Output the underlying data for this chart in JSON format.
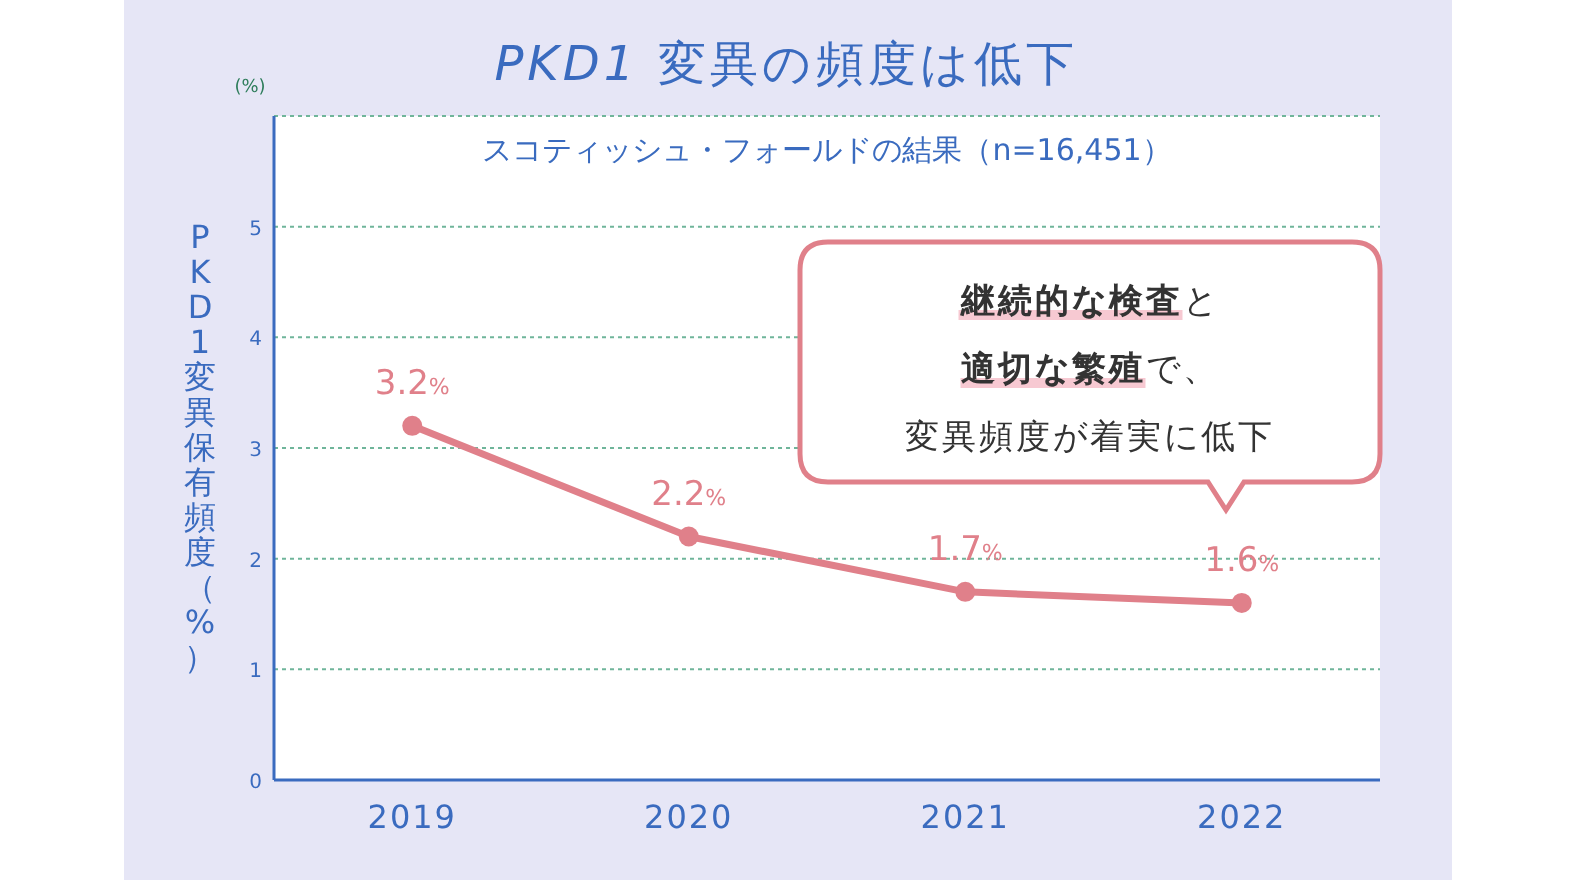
{
  "chart_data": {
    "type": "line",
    "title": "*PKD1* 変異の頻度は低下",
    "subtitle": "スコティッシュ・フォールドの結果（n=16,451）",
    "ylabel": "PKD1変異保有頻度（%）",
    "annotations": [
      "(%)",
      "**継続的な検査**と**適切な繁殖**で、変異頻度が着実に低下"
    ],
    "categories": [
      "2019",
      "2020",
      "2021",
      "2022"
    ],
    "series": [
      {
        "color": "#e0808a",
        "values": [
          3.2,
          2.2,
          1.7,
          1.6
        ],
        "value_labels": [
          "3.2%",
          "2.2%",
          "1.7%",
          "1.6%"
        ]
      }
    ],
    "ylim": [
      0,
      6
    ],
    "yticks": [
      0,
      1,
      2,
      3,
      4,
      5,
      {
        "value": 6,
        "label": null
      }
    ],
    "grid": "y",
    "marker": "circle",
    "line_style": "solid"
  }
}
